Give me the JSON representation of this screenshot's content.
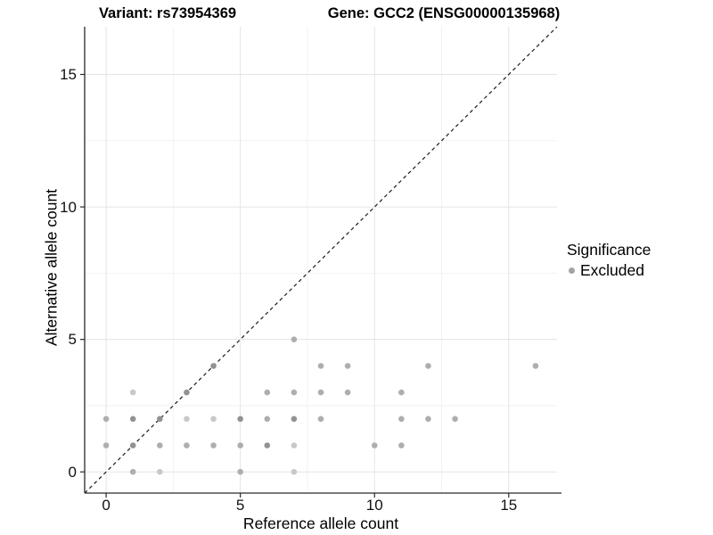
{
  "titles": {
    "variant": "Variant: rs73954369",
    "gene": "Gene: GCC2 (ENSG00000135968)"
  },
  "legend": {
    "title": "Significance",
    "items": [
      {
        "label": "Excluded",
        "color": "#a3a3a3"
      }
    ]
  },
  "colors": {
    "background": "#ffffff",
    "axis": "#2a2a2a",
    "tick": "#2a2a2a",
    "grid_major": "#e4e4e4",
    "grid_minor": "#f2f2f2",
    "identity_line": "#1a1a1a",
    "point_shades": {
      "1": "#c8c8c8",
      "2": "#aeaeae",
      "3": "#929292"
    }
  },
  "chart_data": {
    "type": "scatter",
    "title": "Variant: rs73954369 | Gene: GCC2 (ENSG00000135968)",
    "xlabel": "Reference allele count",
    "ylabel": "Alternative allele count",
    "xlim": [
      -0.8,
      16.8
    ],
    "ylim": [
      -0.8,
      16.8
    ],
    "x_ticks": [
      0,
      5,
      10,
      15
    ],
    "y_ticks": [
      0,
      5,
      10,
      15
    ],
    "minor_ticks": [
      2.5,
      7.5,
      12.5
    ],
    "grid": true,
    "legend_position": "right",
    "legend_title": "Significance",
    "identity_line": {
      "style": "dashed",
      "slope": 1,
      "intercept": 0
    },
    "series": [
      {
        "name": "Excluded",
        "color": "#aeaeae",
        "points": [
          [
            1,
            0,
            2
          ],
          [
            2,
            0,
            1
          ],
          [
            5,
            0,
            2
          ],
          [
            7,
            0,
            1
          ],
          [
            0,
            1,
            2
          ],
          [
            1,
            1,
            3
          ],
          [
            2,
            1,
            2
          ],
          [
            3,
            1,
            2
          ],
          [
            4,
            1,
            2
          ],
          [
            5,
            1,
            2
          ],
          [
            6,
            1,
            3
          ],
          [
            7,
            1,
            1
          ],
          [
            10,
            1,
            2
          ],
          [
            11,
            1,
            2
          ],
          [
            0,
            2,
            2
          ],
          [
            1,
            2,
            3
          ],
          [
            2,
            2,
            3
          ],
          [
            3,
            2,
            1
          ],
          [
            4,
            2,
            1
          ],
          [
            5,
            2,
            3
          ],
          [
            6,
            2,
            2
          ],
          [
            7,
            2,
            3
          ],
          [
            8,
            2,
            2
          ],
          [
            11,
            2,
            2
          ],
          [
            12,
            2,
            2
          ],
          [
            13,
            2,
            2
          ],
          [
            1,
            3,
            1
          ],
          [
            3,
            3,
            3
          ],
          [
            6,
            3,
            2
          ],
          [
            7,
            3,
            2
          ],
          [
            8,
            3,
            2
          ],
          [
            9,
            3,
            2
          ],
          [
            11,
            3,
            2
          ],
          [
            4,
            4,
            3
          ],
          [
            8,
            4,
            2
          ],
          [
            9,
            4,
            2
          ],
          [
            12,
            4,
            2
          ],
          [
            16,
            4,
            2
          ],
          [
            7,
            5,
            2
          ]
        ]
      }
    ]
  }
}
